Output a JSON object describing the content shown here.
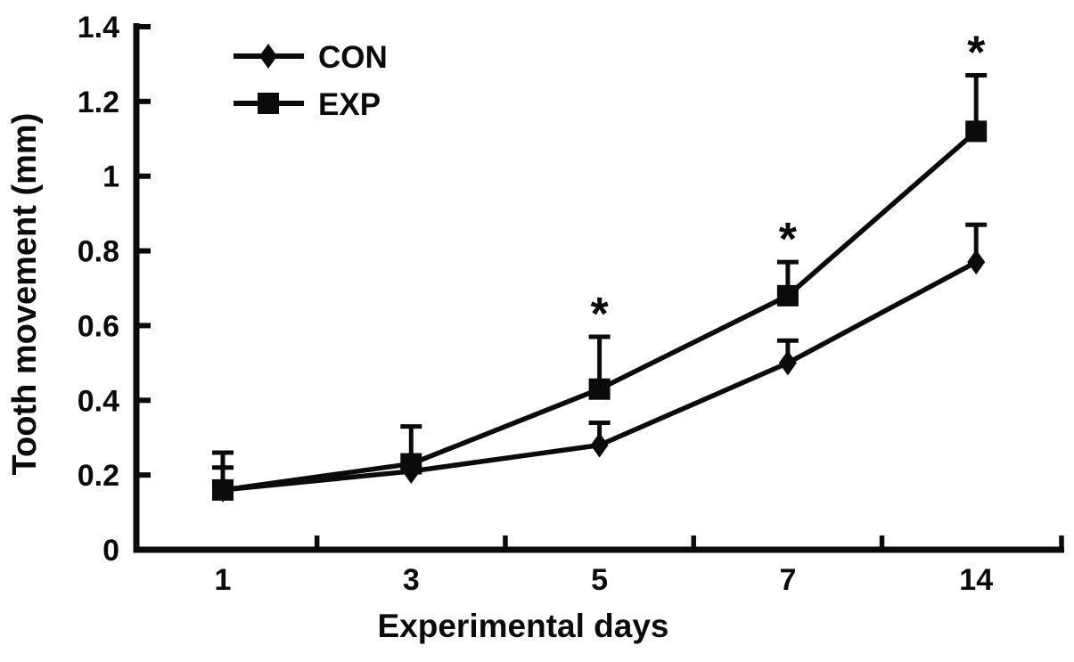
{
  "figure": {
    "background": "#ffffff",
    "ink_color": "#0b0b0b"
  },
  "chart_data": {
    "type": "line",
    "title": "",
    "xlabel": "Experimental days",
    "ylabel": "Tooth movement (mm)",
    "categories": [
      "1",
      "3",
      "5",
      "7",
      "14"
    ],
    "y_tick_labels": [
      "0",
      "0.2",
      "0.4",
      "0.6",
      "0.8",
      "1",
      "1.2",
      "1.4"
    ],
    "y_tick_values": [
      0,
      0.2,
      0.4,
      0.6,
      0.8,
      1.0,
      1.2,
      1.4
    ],
    "ylim": [
      0,
      1.4
    ],
    "grid": false,
    "legend_position": "top-left-inside",
    "significance_symbol": "*",
    "series": [
      {
        "name": "CON",
        "marker": "diamond",
        "values": [
          0.16,
          0.21,
          0.28,
          0.5,
          0.77
        ],
        "error_upper": [
          0.06,
          0,
          0.06,
          0.06,
          0.1
        ],
        "significance": [
          false,
          false,
          false,
          false,
          false
        ]
      },
      {
        "name": "EXP",
        "marker": "square",
        "values": [
          0.16,
          0.23,
          0.43,
          0.68,
          1.12
        ],
        "error_upper": [
          0.1,
          0.1,
          0.14,
          0.09,
          0.15
        ],
        "significance": [
          false,
          false,
          true,
          true,
          true
        ]
      }
    ]
  }
}
